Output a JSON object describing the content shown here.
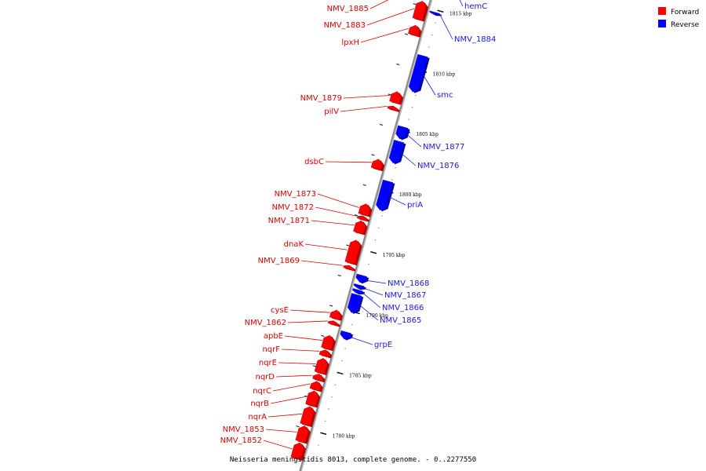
{
  "title": "Neisseria meningitidis 8013, complete genome. - 0..2277550",
  "colors": {
    "forward": "#ff0000",
    "forward_dark": "#b00000",
    "reverse": "#0000ff",
    "reverse_dark": "#0000a8",
    "axis": "#888888",
    "forward_label": "#dd0000",
    "reverse_label": "#1a1adc"
  },
  "legend": [
    {
      "label": "Forward",
      "color": "#ff0000"
    },
    {
      "label": "Reverse",
      "color": "#0000ff"
    }
  ],
  "scale_ticks": [
    {
      "label": "1815 kbp",
      "pos": 1815.0
    },
    {
      "label": "1810 kbp",
      "pos": 1810.0
    },
    {
      "label": "1805 kbp",
      "pos": 1805.0
    },
    {
      "label": "1800 kbp",
      "pos": 1800.0
    },
    {
      "label": "1795 kbp",
      "pos": 1795.0
    },
    {
      "label": "1790 kbp",
      "pos": 1790.0
    },
    {
      "label": "1785 kbp",
      "pos": 1785.0
    },
    {
      "label": "1780 kbp",
      "pos": 1780.0
    }
  ],
  "genes": [
    {
      "name": "NMV_1885",
      "strand": "forward",
      "start": 1816.2,
      "end": 1817.2
    },
    {
      "name": "NMV_1883",
      "strand": "forward",
      "start": 1813.9,
      "end": 1815.4
    },
    {
      "name": "lpxH",
      "strand": "forward",
      "start": 1812.6,
      "end": 1813.4
    },
    {
      "name": "hemC",
      "strand": "reverse",
      "start": 1817.3,
      "end": 1818.0
    },
    {
      "name": "NMV_1884",
      "strand": "reverse",
      "start": 1814.6,
      "end": 1814.8
    },
    {
      "name": "smc",
      "strand": "reverse",
      "start": 1808.2,
      "end": 1811.2
    },
    {
      "name": "NMV_1879",
      "strand": "forward",
      "start": 1807.0,
      "end": 1807.9
    },
    {
      "name": "pilV",
      "strand": "forward",
      "start": 1806.4,
      "end": 1806.7
    },
    {
      "name": "NMV_1877",
      "strand": "reverse",
      "start": 1804.3,
      "end": 1805.3
    },
    {
      "name": "NMV_1876",
      "strand": "reverse",
      "start": 1802.3,
      "end": 1804.1
    },
    {
      "name": "dsbC",
      "strand": "forward",
      "start": 1801.5,
      "end": 1802.3
    },
    {
      "name": "priA",
      "strand": "reverse",
      "start": 1798.4,
      "end": 1800.8
    },
    {
      "name": "NMV_1873",
      "strand": "forward",
      "start": 1797.7,
      "end": 1798.6
    },
    {
      "name": "NMV_1872",
      "strand": "forward",
      "start": 1797.3,
      "end": 1797.6
    },
    {
      "name": "NMV_1871",
      "strand": "forward",
      "start": 1796.2,
      "end": 1797.2
    },
    {
      "name": "dnaK",
      "strand": "forward",
      "start": 1793.7,
      "end": 1795.6
    },
    {
      "name": "NMV_1869",
      "strand": "forward",
      "start": 1793.2,
      "end": 1793.5
    },
    {
      "name": "NMV_1868",
      "strand": "reverse",
      "start": 1792.4,
      "end": 1793.0
    },
    {
      "name": "NMV_1867",
      "strand": "reverse",
      "start": 1791.9,
      "end": 1792.2
    },
    {
      "name": "NMV_1866",
      "strand": "reverse",
      "start": 1791.5,
      "end": 1791.8
    },
    {
      "name": "NMV_1865",
      "strand": "reverse",
      "start": 1789.9,
      "end": 1791.4
    },
    {
      "name": "cysE",
      "strand": "forward",
      "start": 1789.1,
      "end": 1789.8
    },
    {
      "name": "NMV_1862",
      "strand": "forward",
      "start": 1788.6,
      "end": 1788.9
    },
    {
      "name": "grpE",
      "strand": "reverse",
      "start": 1787.7,
      "end": 1788.3
    },
    {
      "name": "apbE",
      "strand": "forward",
      "start": 1786.6,
      "end": 1787.7
    },
    {
      "name": "nqrF",
      "strand": "forward",
      "start": 1786.0,
      "end": 1786.5
    },
    {
      "name": "nqrE",
      "strand": "forward",
      "start": 1784.6,
      "end": 1785.8
    },
    {
      "name": "nqrD",
      "strand": "forward",
      "start": 1784.0,
      "end": 1784.5
    },
    {
      "name": "nqrC",
      "strand": "forward",
      "start": 1783.2,
      "end": 1783.9
    },
    {
      "name": "nqrB",
      "strand": "forward",
      "start": 1781.9,
      "end": 1783.1
    },
    {
      "name": "nqrA",
      "strand": "forward",
      "start": 1780.3,
      "end": 1781.8
    },
    {
      "name": "NMV_1853",
      "strand": "forward",
      "start": 1778.9,
      "end": 1780.2
    },
    {
      "name": "NMV_1852",
      "strand": "forward",
      "start": 1777.5,
      "end": 1778.8
    }
  ]
}
